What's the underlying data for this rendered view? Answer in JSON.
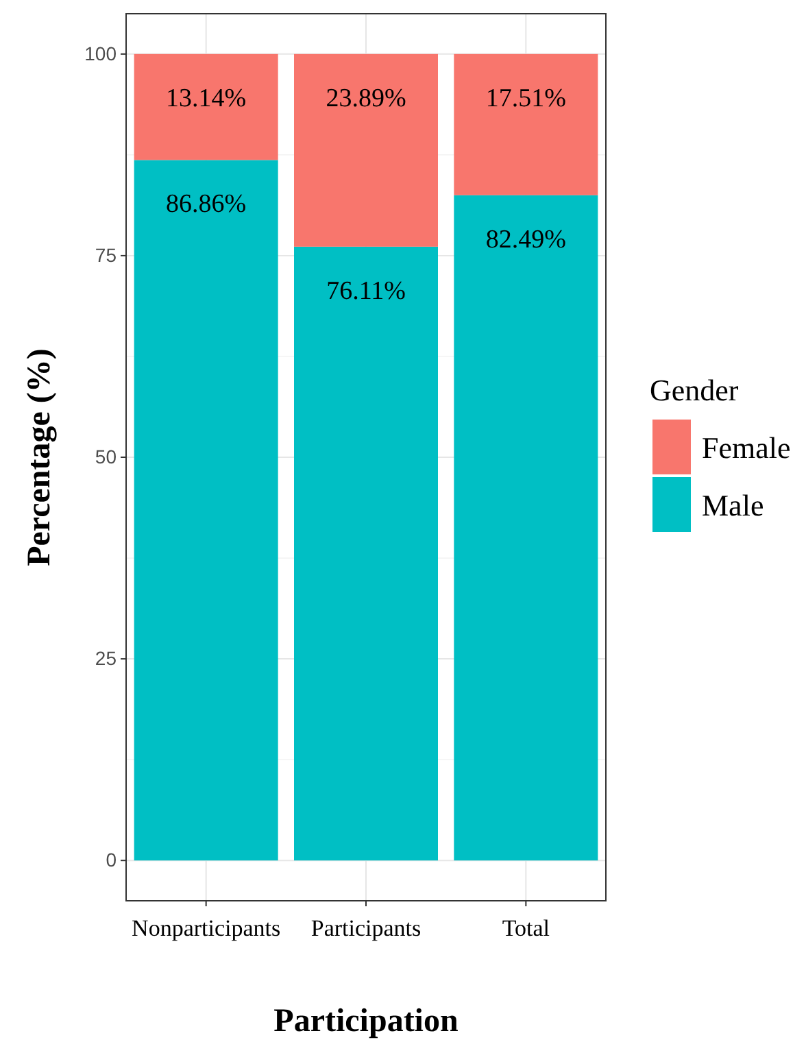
{
  "chart_data": {
    "type": "bar",
    "stacked": true,
    "xlabel": "Participation",
    "ylabel": "Percentage (%)",
    "legend_title": "Gender",
    "legend": "right",
    "grid": true,
    "categories": [
      "Nonparticipants",
      "Participants",
      "Total"
    ],
    "series": [
      {
        "name": "Male",
        "color": "#00bfc4",
        "values": [
          86.86,
          76.11,
          82.49
        ],
        "value_labels": [
          "86.86%",
          "76.11%",
          "82.49%"
        ]
      },
      {
        "name": "Female",
        "color": "#f8766d",
        "values": [
          13.14,
          23.89,
          17.51
        ],
        "value_labels": [
          "13.14%",
          "23.89%",
          "17.51%"
        ]
      }
    ],
    "ylim": [
      -5,
      105
    ],
    "yticks": [
      0,
      25,
      50,
      75,
      100
    ]
  }
}
